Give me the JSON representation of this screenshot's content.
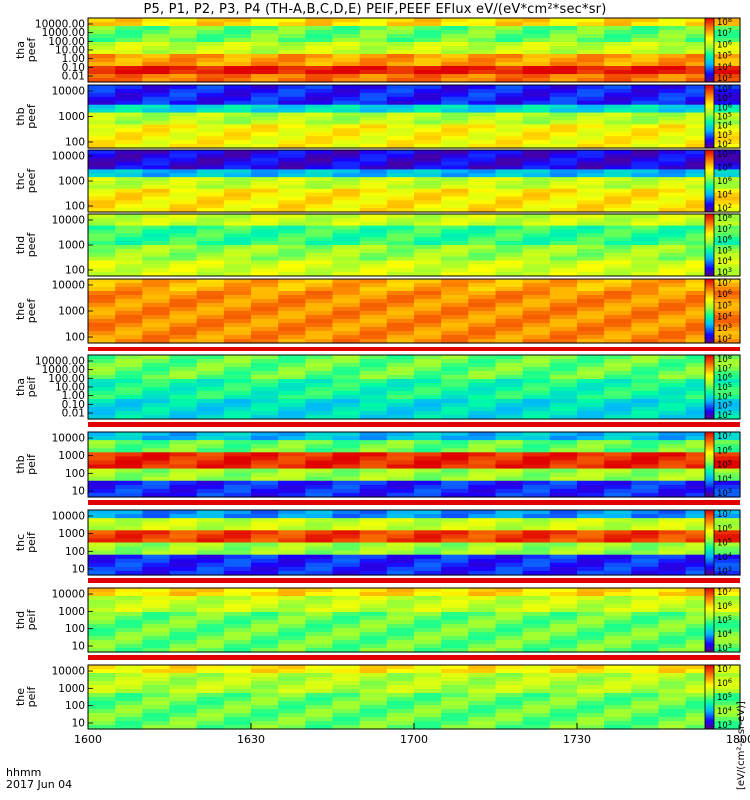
{
  "title": "P5, P1, P2, P3, P4 (TH-A,B,C,D,E) PEIF,PEEF EFlux eV/(eV*cm²*sec*sr)",
  "colorbar_units": "[eV/(cm²-s-sr-eV)]",
  "footer": {
    "time_label": "hhmm",
    "date": "2017 Jun 04"
  },
  "chart_data": {
    "type": "heatmap",
    "x_ticks": [
      "1600",
      "1630",
      "1700",
      "1730",
      "1800"
    ],
    "panels": [
      {
        "id": "tha_peef",
        "label": [
          "tha",
          "peef"
        ],
        "y_ticks": [
          "10000.00",
          "1000.00",
          "100.00",
          "10.00",
          "1.00",
          "0.10",
          "0.01"
        ],
        "cb_ticks": [
          "10^8",
          "10^7",
          "10^6",
          "10^5",
          "10^4",
          "10^3"
        ]
      },
      {
        "id": "thb_peef",
        "label": [
          "thb",
          "peef"
        ],
        "y_ticks": [
          "10000",
          "1000",
          "100"
        ],
        "cb_ticks": [
          "10^8",
          "10^7",
          "10^6",
          "10^5",
          "10^4",
          "10^3",
          "10^2"
        ]
      },
      {
        "id": "thc_peef",
        "label": [
          "thc",
          "peef"
        ],
        "y_ticks": [
          "10000",
          "1000",
          "100"
        ],
        "cb_ticks": [
          "10^10",
          "10^8",
          "10^6",
          "10^4",
          "10^2"
        ]
      },
      {
        "id": "thd_peef",
        "label": [
          "thd",
          "peef"
        ],
        "y_ticks": [
          "10000",
          "1000",
          "100"
        ],
        "cb_ticks": [
          "10^8",
          "10^7",
          "10^6",
          "10^5",
          "10^4",
          "10^3"
        ]
      },
      {
        "id": "the_peef",
        "label": [
          "the",
          "peef"
        ],
        "y_ticks": [
          "10000",
          "1000",
          "100"
        ],
        "cb_ticks": [
          "10^7",
          "10^6",
          "10^5",
          "10^4",
          "10^3",
          "10^2"
        ]
      },
      {
        "id": "tha_peif",
        "label": [
          "tha",
          "peif"
        ],
        "y_ticks": [
          "10000.00",
          "1000.00",
          "100.00",
          "10.00",
          "1.00",
          "0.10",
          "0.01"
        ],
        "cb_ticks": [
          "10^8",
          "10^7",
          "10^6",
          "10^5",
          "10^4",
          "10^3",
          "10^2"
        ]
      },
      {
        "id": "thb_peif",
        "label": [
          "thb",
          "peif"
        ],
        "y_ticks": [
          "10000",
          "1000",
          "100",
          "10"
        ],
        "cb_ticks": [
          "10^7",
          "10^6",
          "10^5",
          "10^4",
          "10^3"
        ]
      },
      {
        "id": "thc_peif",
        "label": [
          "thc",
          "peif"
        ],
        "y_ticks": [
          "10000",
          "1000",
          "100",
          "10"
        ],
        "cb_ticks": [
          "10^7",
          "10^6",
          "10^5",
          "10^4",
          "10^3"
        ]
      },
      {
        "id": "thd_peif",
        "label": [
          "thd",
          "peif"
        ],
        "y_ticks": [
          "10000",
          "1000",
          "100",
          "10"
        ],
        "cb_ticks": [
          "10^7",
          "10^6",
          "10^5",
          "10^4",
          "10^3"
        ]
      },
      {
        "id": "the_peif",
        "label": [
          "the",
          "peif"
        ],
        "y_ticks": [
          "10000",
          "1000",
          "100",
          "10"
        ],
        "cb_ticks": [
          "10^7",
          "10^6",
          "10^5",
          "10^4",
          "10^3"
        ]
      }
    ]
  }
}
